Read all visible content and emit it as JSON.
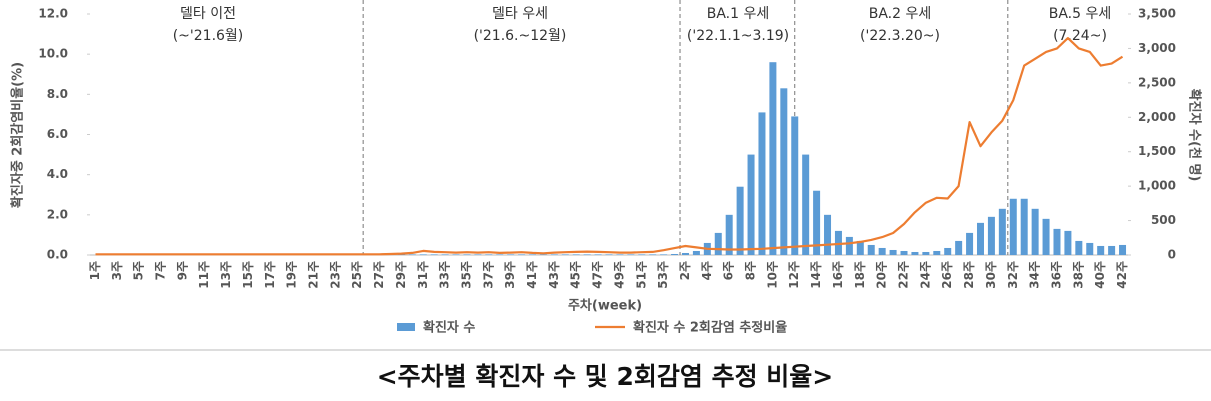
{
  "chart_data": {
    "type": "bar_line",
    "caption": "<주차별 확진자 수 및 2회감염 추정 비율>",
    "x_label": "주차(week)",
    "y_label": "확진자중 2회감염비율(%)",
    "y2_label": "확진자 수(천 명)",
    "annotations": [
      {
        "label": "델타 이전",
        "period": "(~'21.6월)"
      },
      {
        "label": "델타 우세",
        "period": "('21.6.~12월)"
      },
      {
        "label": "BA.1 우세",
        "period": "('22.1.1~3.19)"
      },
      {
        "label": "BA.2 우세",
        "period": "('22.3.20~)"
      },
      {
        "label": "BA.5 우세",
        "period": "(7.24~)"
      }
    ],
    "categories": [
      "1주",
      null,
      "3주",
      null,
      "5주",
      null,
      "7주",
      null,
      "9주",
      null,
      "11주",
      null,
      "13주",
      null,
      "15주",
      null,
      "17주",
      null,
      "19주",
      null,
      "21주",
      null,
      "23주",
      null,
      "25주",
      null,
      "27주",
      null,
      "29주",
      null,
      "31주",
      null,
      "33주",
      null,
      "35주",
      null,
      "37주",
      null,
      "39주",
      null,
      "41주",
      null,
      "43주",
      null,
      "45주",
      null,
      "47주",
      null,
      "49주",
      null,
      "51주",
      null,
      "53주",
      null,
      "2주",
      null,
      "4주",
      null,
      "6주",
      null,
      "8주",
      null,
      "10주",
      null,
      "12주",
      null,
      "14주",
      null,
      "16주",
      null,
      "18주",
      null,
      "20주",
      null,
      "22주",
      null,
      "24주",
      null,
      "26주",
      null,
      "28주",
      null,
      "30주",
      null,
      "32주",
      null,
      "34주",
      null,
      "36주",
      null,
      "38주",
      null,
      "40주",
      null,
      "42주"
    ],
    "series": [
      {
        "name": "확진자 수",
        "type": "bar",
        "color": "#5b9bd5",
        "axis": "y",
        "values": [
          0,
          0,
          0,
          0,
          0,
          0,
          0,
          0,
          0,
          0,
          0,
          0,
          0,
          0,
          0,
          0,
          0,
          0,
          0,
          0,
          0,
          0,
          0,
          0,
          0,
          0,
          0.03,
          0.03,
          0.03,
          0.03,
          0.03,
          0.03,
          0.03,
          0.03,
          0.03,
          0.03,
          0.03,
          0.03,
          0.03,
          0.03,
          0.03,
          0.03,
          0.03,
          0.03,
          0.03,
          0.03,
          0.03,
          0.03,
          0.03,
          0.03,
          0.03,
          0.03,
          0.03,
          0.05,
          0.1,
          0.2,
          0.6,
          1.1,
          2.0,
          3.4,
          5.0,
          7.1,
          9.6,
          8.3,
          6.9,
          5.0,
          3.2,
          2.0,
          1.2,
          0.9,
          0.7,
          0.5,
          0.35,
          0.25,
          0.2,
          0.15,
          0.15,
          0.2,
          0.35,
          0.7,
          1.1,
          1.6,
          1.9,
          2.3,
          2.8,
          2.8,
          2.3,
          1.8,
          1.3,
          1.2,
          0.7,
          0.6,
          0.45,
          0.45,
          0.5
        ]
      },
      {
        "name": "확진자 수 2회감염 추정비율",
        "type": "line",
        "color": "#ed7d31",
        "axis": "y2",
        "values": [
          10,
          10,
          10,
          10,
          10,
          10,
          10,
          10,
          10,
          10,
          10,
          10,
          10,
          10,
          10,
          10,
          10,
          10,
          10,
          10,
          10,
          10,
          10,
          10,
          10,
          10,
          10,
          15,
          20,
          30,
          60,
          45,
          40,
          35,
          40,
          35,
          40,
          30,
          35,
          40,
          30,
          25,
          35,
          40,
          45,
          50,
          45,
          40,
          35,
          35,
          40,
          45,
          70,
          100,
          130,
          110,
          90,
          85,
          80,
          80,
          85,
          90,
          100,
          110,
          120,
          130,
          140,
          150,
          160,
          170,
          190,
          220,
          260,
          320,
          450,
          620,
          760,
          830,
          820,
          1000,
          1930,
          1580,
          1780,
          1950,
          2250,
          2750,
          2850,
          2950,
          3000,
          3150,
          3000,
          2950,
          2750,
          2780,
          2880
        ]
      }
    ],
    "ylim": [
      0,
      12
    ],
    "yticks": [
      {
        "value": 0,
        "label": "0.0"
      },
      {
        "value": 2,
        "label": "2.0"
      },
      {
        "value": 4,
        "label": "4.0"
      },
      {
        "value": 6,
        "label": "6.0"
      },
      {
        "value": 8,
        "label": "8.0"
      },
      {
        "value": 10,
        "label": "10.0"
      },
      {
        "value": 12,
        "label": "12.0"
      }
    ],
    "y2lim": [
      0,
      3500
    ],
    "y2ticks": [
      0,
      500,
      {
        "value": 1000,
        "label": "1,000"
      },
      {
        "value": 1500,
        "label": "1,500"
      },
      {
        "value": 2000,
        "label": "2,000"
      },
      {
        "value": 2500,
        "label": "2,500"
      },
      {
        "value": 3000,
        "label": "3,000"
      },
      {
        "value": 3500,
        "label": "3,500"
      }
    ],
    "grid": false
  }
}
